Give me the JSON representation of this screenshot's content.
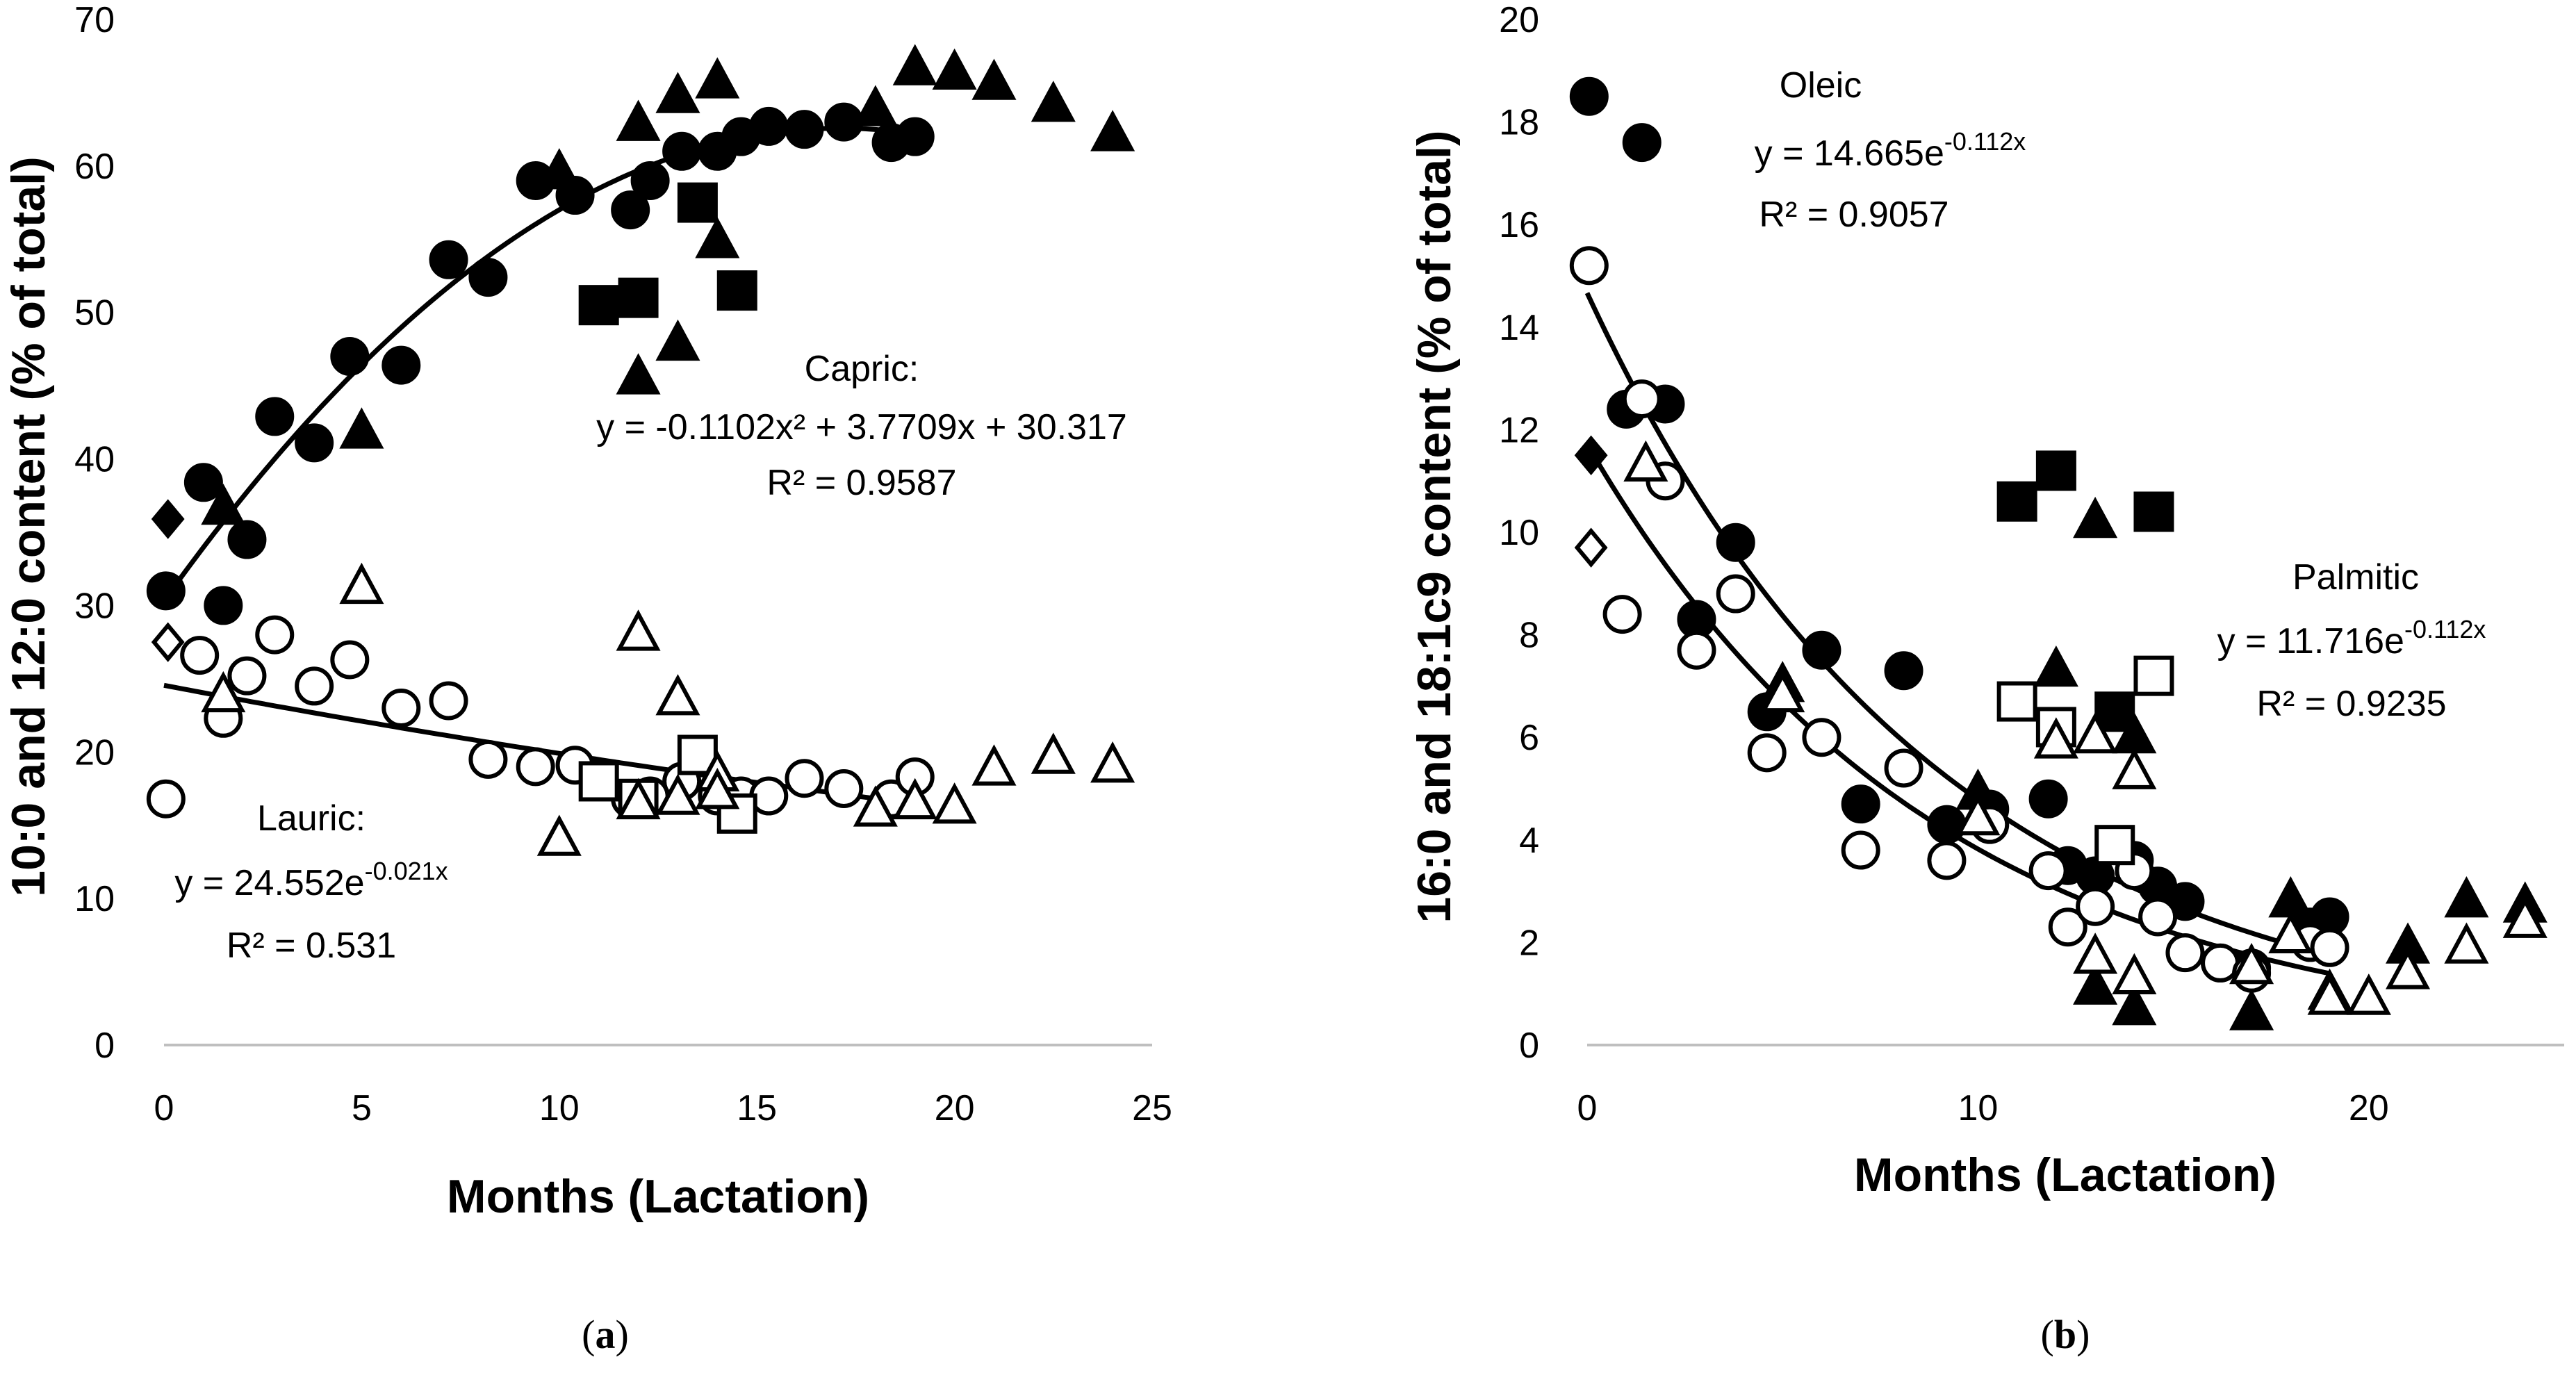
{
  "chart_data": [
    {
      "panel": "a",
      "type": "scatter",
      "caption_prefix": "(",
      "caption_letter": "a",
      "caption_suffix": ")",
      "xlabel": "Months (Lactation)",
      "ylabel": "10:0 and 12:0 content (% of total)",
      "xlim": [
        0,
        25
      ],
      "ylim": [
        0,
        70
      ],
      "xticks": [
        0,
        5,
        10,
        15,
        20,
        25
      ],
      "yticks": [
        0,
        10,
        20,
        30,
        40,
        50,
        60,
        70
      ],
      "series": [
        {
          "name": "Capric circles",
          "marker": "circle",
          "filled": true,
          "points": [
            [
              0.05,
              31
            ],
            [
              1,
              38.4
            ],
            [
              1.5,
              30
            ],
            [
              2.1,
              34.5
            ],
            [
              2.8,
              42.9
            ],
            [
              3.8,
              41.1
            ],
            [
              4.7,
              47
            ],
            [
              6,
              46.4
            ],
            [
              7.2,
              53.6
            ],
            [
              8.2,
              52.4
            ],
            [
              9.4,
              59
            ],
            [
              10.4,
              58
            ],
            [
              11.8,
              57
            ],
            [
              12.3,
              59
            ],
            [
              13.1,
              61
            ],
            [
              14,
              61
            ],
            [
              14.6,
              62
            ],
            [
              15.3,
              62.7
            ],
            [
              16.2,
              62.5
            ],
            [
              17.2,
              63
            ],
            [
              18.4,
              61.6
            ],
            [
              19,
              62
            ]
          ]
        },
        {
          "name": "Capric diamonds",
          "marker": "diamond",
          "filled": true,
          "points": [
            [
              0.1,
              35.9
            ]
          ]
        },
        {
          "name": "Capric squares",
          "marker": "square",
          "filled": true,
          "points": [
            [
              11,
              50.5
            ],
            [
              12,
              51
            ],
            [
              13.5,
              57.5
            ],
            [
              14.5,
              51.5
            ]
          ]
        },
        {
          "name": "Capric triangles",
          "marker": "triangle",
          "filled": true,
          "points": [
            [
              1.5,
              36.6
            ],
            [
              5,
              41.8
            ],
            [
              10,
              59.5
            ],
            [
              12,
              62.8
            ],
            [
              12,
              45.5
            ],
            [
              13,
              64.7
            ],
            [
              13,
              47.8
            ],
            [
              14,
              65.7
            ],
            [
              14,
              54.8
            ],
            [
              18,
              63.8
            ],
            [
              19,
              66.6
            ],
            [
              20,
              66.3
            ],
            [
              21,
              65.6
            ],
            [
              22.5,
              64.1
            ],
            [
              24,
              62.1
            ]
          ]
        },
        {
          "name": "Lauric circles",
          "marker": "circle",
          "filled": false,
          "points": [
            [
              0.05,
              16.8
            ],
            [
              0.9,
              26.6
            ],
            [
              1.5,
              22.3
            ],
            [
              2.1,
              25.2
            ],
            [
              2.8,
              28
            ],
            [
              3.8,
              24.5
            ],
            [
              4.7,
              26.3
            ],
            [
              6,
              23
            ],
            [
              7.2,
              23.5
            ],
            [
              8.2,
              19.5
            ],
            [
              9.4,
              19
            ],
            [
              10.4,
              19.1
            ],
            [
              11.8,
              16.8
            ],
            [
              12.3,
              17
            ],
            [
              13.1,
              18
            ],
            [
              14,
              17
            ],
            [
              14.6,
              17
            ],
            [
              15.3,
              17
            ],
            [
              16.2,
              18.2
            ],
            [
              17.2,
              17.5
            ],
            [
              18.4,
              16.8
            ],
            [
              19,
              18.3
            ]
          ]
        },
        {
          "name": "Lauric diamonds",
          "marker": "diamond",
          "filled": false,
          "points": [
            [
              0.1,
              27.5
            ]
          ]
        },
        {
          "name": "Lauric squares",
          "marker": "square",
          "filled": false,
          "points": [
            [
              11,
              18
            ],
            [
              12,
              16.8
            ],
            [
              13.5,
              19.8
            ],
            [
              14.5,
              15.8
            ]
          ]
        },
        {
          "name": "Lauric triangles",
          "marker": "triangle",
          "filled": false,
          "points": [
            [
              1.5,
              23.8
            ],
            [
              5,
              31.2
            ],
            [
              10,
              14
            ],
            [
              12,
              28
            ],
            [
              12,
              16.5
            ],
            [
              13,
              23.6
            ],
            [
              13,
              16.8
            ],
            [
              14,
              18.4
            ],
            [
              14,
              17.2
            ],
            [
              18,
              16
            ],
            [
              19,
              16.5
            ],
            [
              20,
              16.2
            ],
            [
              21,
              18.8
            ],
            [
              22.5,
              19.6
            ],
            [
              24,
              19
            ]
          ]
        }
      ],
      "trendlines": [
        {
          "name": "Capric",
          "form": "quadratic",
          "coefficients": [
            -0.1102,
            3.7709,
            30.317
          ],
          "x_range": [
            0,
            19
          ]
        },
        {
          "name": "Lauric",
          "form": "exponential",
          "a": 24.552,
          "b": -0.021,
          "x_range": [
            0,
            19
          ]
        }
      ],
      "annotations": [
        {
          "text": "Capric:"
        },
        {
          "text": "y = -0.1102x² + 3.7709x + 30.317"
        },
        {
          "text": "R² = 0.9587"
        },
        {
          "text": "Lauric:"
        },
        {
          "text": "y = 24.552e",
          "sup": "-0.021x"
        },
        {
          "text": "R² = 0.531"
        }
      ]
    },
    {
      "panel": "b",
      "type": "scatter",
      "caption_prefix": "(",
      "caption_letter": "b",
      "caption_suffix": ")",
      "xlabel": "Months (Lactation)",
      "ylabel": "16:0 and 18:1c9 content (% of total)",
      "xlim": [
        0,
        25
      ],
      "ylim": [
        0,
        20
      ],
      "xticks": [
        0,
        10,
        20
      ],
      "yticks": [
        0,
        2,
        4,
        6,
        8,
        10,
        12,
        14,
        16,
        18,
        20
      ],
      "series": [
        {
          "name": "Oleic circles",
          "marker": "circle",
          "filled": true,
          "points": [
            [
              0.05,
              18.5
            ],
            [
              1.4,
              17.6
            ],
            [
              1,
              12.4
            ],
            [
              2,
              12.5
            ],
            [
              2.8,
              8.3
            ],
            [
              3.8,
              9.8
            ],
            [
              4.6,
              6.5
            ],
            [
              6,
              7.7
            ],
            [
              7,
              4.7
            ],
            [
              8.1,
              7.3
            ],
            [
              9.2,
              4.3
            ],
            [
              10.3,
              4.6
            ],
            [
              11.8,
              4.8
            ],
            [
              12.3,
              3.5
            ],
            [
              13,
              3.3
            ],
            [
              14,
              3.6
            ],
            [
              14.6,
              3.1
            ],
            [
              15.3,
              2.8
            ],
            [
              16.2,
              1.6
            ],
            [
              17,
              1.5
            ],
            [
              18.5,
              2.3
            ],
            [
              19,
              2.5
            ]
          ]
        },
        {
          "name": "Oleic diamonds",
          "marker": "diamond",
          "filled": true,
          "points": [
            [
              0.1,
              11.5
            ]
          ]
        },
        {
          "name": "Oleic squares",
          "marker": "square",
          "filled": true,
          "points": [
            [
              11,
              10.6
            ],
            [
              12,
              11.2
            ],
            [
              13.5,
              6.5
            ],
            [
              14.5,
              10.4
            ]
          ]
        },
        {
          "name": "Oleic triangles",
          "marker": "triangle",
          "filled": true,
          "points": [
            [
              5,
              7
            ],
            [
              10,
              4.9
            ],
            [
              12,
              7.3
            ],
            [
              13,
              10.2
            ],
            [
              13,
              1.1
            ],
            [
              14,
              6
            ],
            [
              14,
              0.7
            ],
            [
              17,
              0.6
            ],
            [
              18,
              2.8
            ],
            [
              19,
              1
            ],
            [
              20,
              0.9
            ],
            [
              21,
              1.9
            ],
            [
              22.5,
              2.8
            ],
            [
              24,
              2.7
            ]
          ]
        },
        {
          "name": "Palmitic circles",
          "marker": "circle",
          "filled": false,
          "points": [
            [
              0.05,
              15.2
            ],
            [
              1.4,
              12.6
            ],
            [
              0.9,
              8.4
            ],
            [
              2,
              11
            ],
            [
              2.8,
              7.7
            ],
            [
              3.8,
              8.8
            ],
            [
              4.6,
              5.7
            ],
            [
              6,
              6
            ],
            [
              7,
              3.8
            ],
            [
              8.1,
              5.4
            ],
            [
              9.2,
              3.6
            ],
            [
              10.3,
              4.3
            ],
            [
              11.8,
              3.4
            ],
            [
              12.3,
              2.3
            ],
            [
              13,
              2.7
            ],
            [
              14,
              3.4
            ],
            [
              14.6,
              2.5
            ],
            [
              15.3,
              1.8
            ],
            [
              16.2,
              1.6
            ],
            [
              17,
              1.4
            ],
            [
              18.5,
              2
            ],
            [
              19,
              1.9
            ]
          ]
        },
        {
          "name": "Palmitic diamonds",
          "marker": "diamond",
          "filled": false,
          "points": [
            [
              0.1,
              9.7
            ]
          ]
        },
        {
          "name": "Palmitic squares",
          "marker": "square",
          "filled": false,
          "points": [
            [
              11,
              6.7
            ],
            [
              12,
              6.2
            ],
            [
              13.5,
              3.9
            ],
            [
              14.5,
              7.2
            ]
          ]
        },
        {
          "name": "Palmitic triangles",
          "marker": "triangle",
          "filled": false,
          "points": [
            [
              1.5,
              11.3
            ],
            [
              5,
              6.8
            ],
            [
              10,
              4.4
            ],
            [
              12,
              5.9
            ],
            [
              13,
              6
            ],
            [
              13,
              1.7
            ],
            [
              14,
              5.3
            ],
            [
              14,
              1.3
            ],
            [
              17,
              1.5
            ],
            [
              18,
              2.1
            ],
            [
              19,
              0.9
            ],
            [
              20,
              0.9
            ],
            [
              21,
              1.4
            ],
            [
              22.5,
              1.9
            ],
            [
              24,
              2.4
            ]
          ]
        }
      ],
      "trendlines": [
        {
          "name": "Oleic",
          "form": "exponential",
          "a": 14.665,
          "b": -0.112,
          "x_range": [
            0,
            19
          ]
        },
        {
          "name": "Palmitic",
          "form": "exponential",
          "a": 11.716,
          "b": -0.112,
          "x_range": [
            0,
            19
          ]
        }
      ],
      "annotations": [
        {
          "text": "Oleic"
        },
        {
          "text": "y = 14.665e",
          "sup": "-0.112x"
        },
        {
          "text": "R² = 0.9057"
        },
        {
          "text": "Palmitic"
        },
        {
          "text": "y = 11.716e",
          "sup": "-0.112x"
        },
        {
          "text": "R² = 0.9235"
        }
      ]
    }
  ]
}
